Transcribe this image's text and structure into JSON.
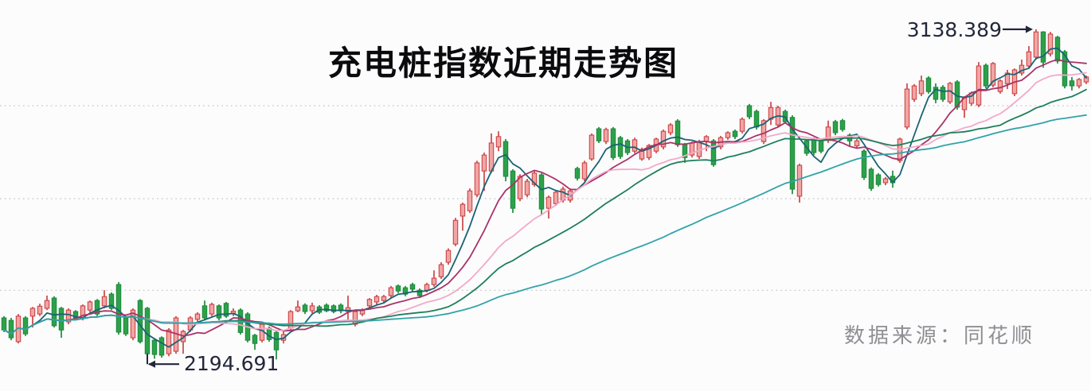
{
  "page": {
    "background": "#fcfcfd"
  },
  "title": {
    "text": "充电桩指数近期走势图"
  },
  "source": {
    "text": "数据来源：同花顺"
  },
  "annotations": {
    "high": {
      "label": "3138.389",
      "value": 3138.389,
      "candle_index": 144
    },
    "low": {
      "label": "2194.691",
      "value": 2194.691,
      "candle_index": 20
    }
  },
  "chart_data": {
    "type": "candlestick",
    "title": "充电桩指数近期走势图",
    "x_axis": "trading days (unlabeled)",
    "y_axis": "index points (unlabeled)",
    "ylim": [
      2119,
      3221
    ],
    "gridline_values": [
      2923,
      2661,
      2403
    ],
    "grid_style": "dotted",
    "grid_color": "#b5b5ba",
    "legend_position": "none",
    "high_point": 3138.389,
    "low_point": 2194.691,
    "up_candle": {
      "fill": "#f1a5a5",
      "stroke": "#cc4545"
    },
    "down_candle": {
      "fill": "#2da14a",
      "stroke": "#1f8a3d"
    },
    "annotation_color": "#23273a",
    "layout": {
      "x_start": 5,
      "x_step": 9,
      "body_width": 5.4
    },
    "ma_lines": [
      {
        "name": "MA5",
        "window": 5,
        "color": "#1a6374"
      },
      {
        "name": "MA10",
        "window": 10,
        "color": "#a93368"
      },
      {
        "name": "MA20",
        "window": 20,
        "color": "#f2aac8"
      },
      {
        "name": "MA30",
        "window": 30,
        "color": "#1e7f5c"
      },
      {
        "name": "MA60",
        "window": 60,
        "color": "#31a3a8"
      }
    ],
    "candles_format": [
      "open",
      "close",
      "low",
      "high"
    ],
    "candles": [
      [
        2325,
        2291,
        2285,
        2330
      ],
      [
        2318,
        2269,
        2262,
        2325
      ],
      [
        2258,
        2330,
        2253,
        2336
      ],
      [
        2325,
        2280,
        2274,
        2330
      ],
      [
        2330,
        2352,
        2298,
        2356
      ],
      [
        2336,
        2358,
        2330,
        2365
      ],
      [
        2352,
        2374,
        2347,
        2388
      ],
      [
        2381,
        2303,
        2298,
        2386
      ],
      [
        2352,
        2291,
        2269,
        2356
      ],
      [
        2314,
        2347,
        2307,
        2352
      ],
      [
        2343,
        2325,
        2318,
        2347
      ],
      [
        2325,
        2359,
        2318,
        2363
      ],
      [
        2347,
        2370,
        2341,
        2374
      ],
      [
        2374,
        2336,
        2330,
        2378
      ],
      [
        2359,
        2385,
        2352,
        2403
      ],
      [
        2392,
        2352,
        2347,
        2397
      ],
      [
        2419,
        2285,
        2278,
        2426
      ],
      [
        2325,
        2280,
        2274,
        2330
      ],
      [
        2269,
        2347,
        2262,
        2352
      ],
      [
        2374,
        2258,
        2253,
        2378
      ],
      [
        2352,
        2224,
        2194.691,
        2356
      ],
      [
        2262,
        2222,
        2210,
        2266
      ],
      [
        2269,
        2220,
        2213,
        2273
      ],
      [
        2224,
        2291,
        2217,
        2296
      ],
      [
        2231,
        2325,
        2224,
        2330
      ],
      [
        2258,
        2287,
        2224,
        2291
      ],
      [
        2291,
        2325,
        2285,
        2330
      ],
      [
        2321,
        2336,
        2314,
        2341
      ],
      [
        2359,
        2325,
        2318,
        2374
      ],
      [
        2336,
        2363,
        2330,
        2368
      ],
      [
        2359,
        2325,
        2318,
        2363
      ],
      [
        2366,
        2330,
        2325,
        2370
      ],
      [
        2338,
        2344,
        2330,
        2352
      ],
      [
        2347,
        2284,
        2278,
        2352
      ],
      [
        2336,
        2262,
        2256,
        2341
      ],
      [
        2276,
        2253,
        2235,
        2280
      ],
      [
        2262,
        2307,
        2256,
        2312
      ],
      [
        2296,
        2264,
        2258,
        2301
      ],
      [
        2284,
        2235,
        2208,
        2289
      ],
      [
        2262,
        2278,
        2253,
        2287
      ],
      [
        2296,
        2343,
        2291,
        2347
      ],
      [
        2345,
        2356,
        2341,
        2374
      ],
      [
        2361,
        2343,
        2336,
        2366
      ],
      [
        2345,
        2359,
        2338,
        2368
      ],
      [
        2356,
        2341,
        2336,
        2361
      ],
      [
        2361,
        2345,
        2341,
        2366
      ],
      [
        2359,
        2343,
        2338,
        2363
      ],
      [
        2361,
        2345,
        2338,
        2366
      ],
      [
        2343,
        2354,
        2320,
        2388
      ],
      [
        2307,
        2343,
        2301,
        2347
      ],
      [
        2336,
        2347,
        2330,
        2352
      ],
      [
        2359,
        2377,
        2352,
        2381
      ],
      [
        2370,
        2385,
        2363,
        2390
      ],
      [
        2374,
        2385,
        2368,
        2390
      ],
      [
        2388,
        2410,
        2381,
        2415
      ],
      [
        2415,
        2401,
        2395,
        2419
      ],
      [
        2410,
        2392,
        2386,
        2415
      ],
      [
        2419,
        2406,
        2399,
        2424
      ],
      [
        2403,
        2388,
        2381,
        2408
      ],
      [
        2403,
        2419,
        2397,
        2424
      ],
      [
        2419,
        2437,
        2413,
        2459
      ],
      [
        2441,
        2475,
        2435,
        2482
      ],
      [
        2482,
        2515,
        2475,
        2521
      ],
      [
        2533,
        2600,
        2527,
        2607
      ],
      [
        2612,
        2645,
        2571,
        2650
      ],
      [
        2627,
        2683,
        2621,
        2690
      ],
      [
        2672,
        2762,
        2665,
        2768
      ],
      [
        2739,
        2784,
        2683,
        2791
      ],
      [
        2739,
        2818,
        2733,
        2845
      ],
      [
        2807,
        2836,
        2795,
        2851
      ],
      [
        2822,
        2724,
        2710,
        2829
      ],
      [
        2739,
        2634,
        2621,
        2744
      ],
      [
        2661,
        2724,
        2654,
        2730
      ],
      [
        2672,
        2710,
        2665,
        2717
      ],
      [
        2701,
        2733,
        2695,
        2739
      ],
      [
        2728,
        2632,
        2616,
        2733
      ],
      [
        2634,
        2665,
        2605,
        2670
      ],
      [
        2647,
        2679,
        2641,
        2685
      ],
      [
        2657,
        2688,
        2650,
        2695
      ],
      [
        2657,
        2683,
        2650,
        2690
      ],
      [
        2746,
        2719,
        2712,
        2751
      ],
      [
        2717,
        2762,
        2710,
        2768
      ],
      [
        2773,
        2840,
        2768,
        2845
      ],
      [
        2858,
        2824,
        2818,
        2863
      ],
      [
        2822,
        2856,
        2815,
        2861
      ],
      [
        2858,
        2777,
        2770,
        2863
      ],
      [
        2833,
        2780,
        2773,
        2838
      ],
      [
        2824,
        2791,
        2784,
        2829
      ],
      [
        2795,
        2827,
        2789,
        2833
      ],
      [
        2773,
        2800,
        2768,
        2805
      ],
      [
        2777,
        2811,
        2770,
        2815
      ],
      [
        2795,
        2829,
        2789,
        2833
      ],
      [
        2807,
        2851,
        2800,
        2856
      ],
      [
        2847,
        2869,
        2840,
        2874
      ],
      [
        2880,
        2813,
        2807,
        2885
      ],
      [
        2813,
        2777,
        2762,
        2818
      ],
      [
        2784,
        2818,
        2777,
        2822
      ],
      [
        2780,
        2822,
        2773,
        2827
      ],
      [
        2822,
        2836,
        2795,
        2840
      ],
      [
        2824,
        2757,
        2751,
        2829
      ],
      [
        2807,
        2833,
        2800,
        2838
      ],
      [
        2833,
        2847,
        2827,
        2851
      ],
      [
        2851,
        2836,
        2829,
        2856
      ],
      [
        2851,
        2885,
        2845,
        2890
      ],
      [
        2923,
        2892,
        2885,
        2928
      ],
      [
        2907,
        2863,
        2856,
        2912
      ],
      [
        2822,
        2881,
        2815,
        2885
      ],
      [
        2885,
        2918,
        2869,
        2934
      ],
      [
        2869,
        2918,
        2863,
        2923
      ],
      [
        2907,
        2878,
        2872,
        2912
      ],
      [
        2890,
        2688,
        2674,
        2896
      ],
      [
        2668,
        2755,
        2650,
        2760
      ],
      [
        2824,
        2789,
        2782,
        2829
      ],
      [
        2829,
        2791,
        2784,
        2833
      ],
      [
        2824,
        2795,
        2789,
        2829
      ],
      [
        2825,
        2863,
        2818,
        2881
      ],
      [
        2878,
        2847,
        2840,
        2883
      ],
      [
        2881,
        2856,
        2850,
        2886
      ],
      [
        2840,
        2824,
        2807,
        2845
      ],
      [
        2810,
        2824,
        2803,
        2829
      ],
      [
        2795,
        2721,
        2714,
        2800
      ],
      [
        2744,
        2690,
        2683,
        2749
      ],
      [
        2728,
        2701,
        2695,
        2733
      ],
      [
        2706,
        2717,
        2699,
        2722
      ],
      [
        2724,
        2706,
        2692,
        2740
      ],
      [
        2768,
        2829,
        2762,
        2833
      ],
      [
        2863,
        2970,
        2856,
        2986
      ],
      [
        2941,
        2979,
        2934,
        2984
      ],
      [
        2957,
        2993,
        2950,
        3008
      ],
      [
        3001,
        2963,
        2957,
        3006
      ],
      [
        2975,
        2941,
        2930,
        2986
      ],
      [
        2975,
        2941,
        2934,
        2981
      ],
      [
        2934,
        2986,
        2928,
        2990
      ],
      [
        2990,
        2919,
        2912,
        2995
      ],
      [
        2912,
        2945,
        2889,
        2950
      ],
      [
        2930,
        2959,
        2923,
        2963
      ],
      [
        2925,
        3035,
        2919,
        3046
      ],
      [
        3037,
        2979,
        2972,
        3042
      ],
      [
        2981,
        3042,
        2975,
        3046
      ],
      [
        2963,
        2993,
        2957,
        2997
      ],
      [
        2985,
        3015,
        2970,
        3024
      ],
      [
        2957,
        3024,
        2950,
        3028
      ],
      [
        3015,
        3037,
        3008,
        3053
      ],
      [
        3035,
        3075,
        3028,
        3091
      ],
      [
        3060,
        3131,
        3053,
        3138.389
      ],
      [
        3131,
        3046,
        3030,
        3133
      ],
      [
        3069,
        3125,
        3062,
        3131
      ],
      [
        3116,
        3049,
        3042,
        3120
      ],
      [
        3075,
        2979,
        2972,
        3080
      ],
      [
        2993,
        2979,
        2966,
        3004
      ],
      [
        2979,
        2997,
        2972,
        3001
      ],
      [
        2990,
        3004,
        2984,
        3008
      ]
    ]
  }
}
